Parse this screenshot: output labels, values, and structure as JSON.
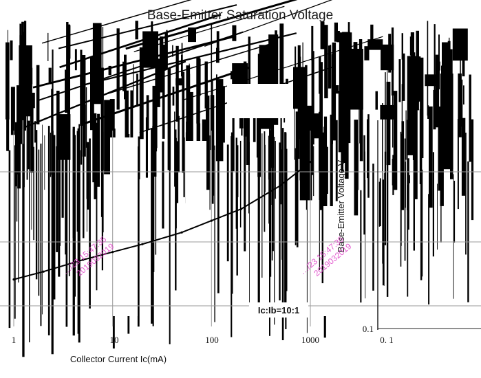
{
  "chart_data": {
    "type": "line",
    "title": "Base-Emitter Saturation Voltage",
    "xlabel": "Collector Current   Ic(mA)",
    "ylabel": "Base-Emitter Voltage   V",
    "x_scale": "log",
    "xlim": [
      1,
      1000
    ],
    "x_ticks": [
      "1",
      "10",
      "100",
      "1000"
    ],
    "y_ticks_visible": [
      "0.1"
    ],
    "right_panel_x_ticks": [
      "0. 1"
    ],
    "annotations": [
      "Ic:Ib=10:1"
    ],
    "grid": true,
    "series": [
      {
        "x": [
          1,
          2,
          5,
          10,
          20,
          50,
          100,
          200,
          500,
          1000
        ],
        "values": [
          0.62,
          0.64,
          0.67,
          0.69,
          0.71,
          0.74,
          0.77,
          0.8,
          0.86,
          0.92
        ]
      }
    ]
  },
  "watermarks": [
    {
      "line1": "…/23 15:47:35",
      "line2": "2019032019"
    },
    {
      "line1": "…/23 15:47:35",
      "line2": "2019032019"
    }
  ]
}
